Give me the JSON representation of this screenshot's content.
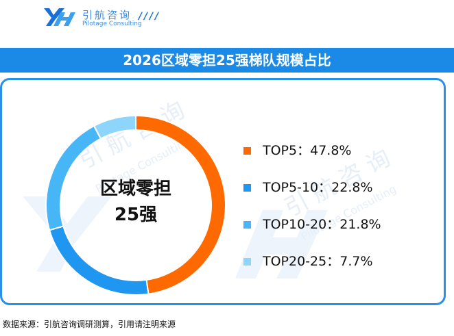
{
  "brand": {
    "name_cn": "引航咨询",
    "name_en": "Pilotage Consulting",
    "logo_icon": "yh-logo-icon",
    "primary_color": "#1a8ae6"
  },
  "title": "2026区域零担25强梯队规模占比",
  "center_label": [
    "区域零担",
    "25强"
  ],
  "chart_data": {
    "type": "pie",
    "donut": true,
    "title": "2026区域零担25强梯队规模占比",
    "unit": "%",
    "legend_position": "right",
    "slices": [
      {
        "name": "TOP5",
        "value": 47.8,
        "label": "TOP5：47.8%",
        "color": "#ff6a00"
      },
      {
        "name": "TOP5-10",
        "value": 22.8,
        "label": "TOP5-10：22.8%",
        "color": "#1f96f0"
      },
      {
        "name": "TOP10-20",
        "value": 21.8,
        "label": "TOP10-20：21.8%",
        "color": "#47b6f7"
      },
      {
        "name": "TOP20-25",
        "value": 7.7,
        "label": "TOP20-25：7.7%",
        "color": "#8dd5fb"
      }
    ]
  },
  "source": "数据来源：引航咨询调研测算，引用请注明来源"
}
